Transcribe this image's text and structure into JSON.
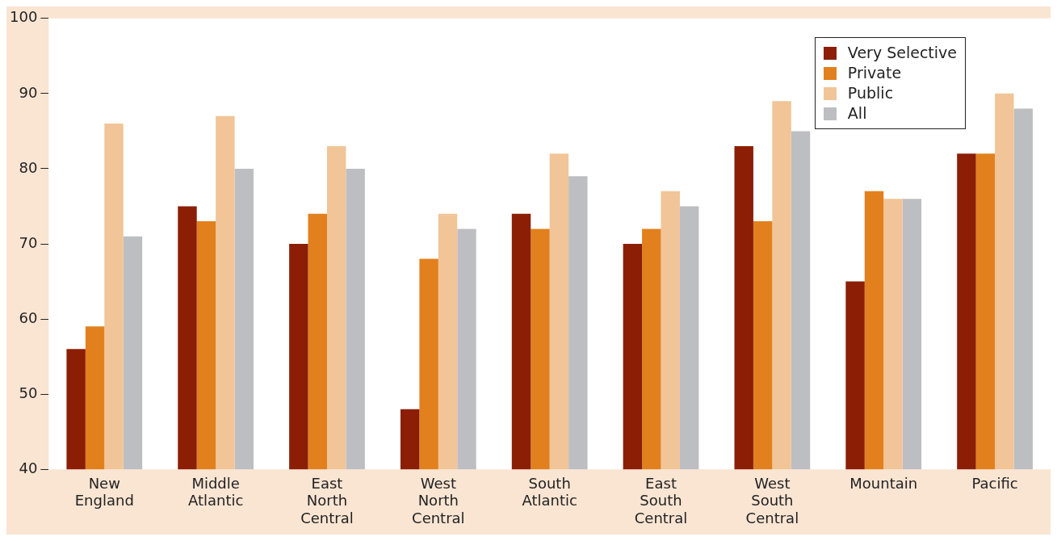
{
  "chart_data": {
    "type": "bar",
    "categories": [
      "New England",
      "Middle Atlantic",
      "East North Central",
      "West North Central",
      "South Atlantic",
      "East South Central",
      "West South Central",
      "Mountain",
      "Pacific"
    ],
    "series": [
      {
        "name": "Very Selective",
        "color": "#8b1e05",
        "values": [
          56,
          75,
          70,
          48,
          74,
          70,
          83,
          65,
          82
        ]
      },
      {
        "name": "Private",
        "color": "#e2801e",
        "values": [
          59,
          73,
          74,
          68,
          72,
          72,
          73,
          77,
          82
        ]
      },
      {
        "name": "Public",
        "color": "#f1c597",
        "values": [
          86,
          87,
          83,
          74,
          82,
          77,
          89,
          76,
          90
        ]
      },
      {
        "name": "All",
        "color": "#bdbec2",
        "values": [
          71,
          80,
          80,
          72,
          79,
          75,
          85,
          76,
          88
        ]
      }
    ],
    "ylim": [
      40,
      100
    ],
    "yticks": [
      40,
      50,
      60,
      70,
      80,
      90,
      100
    ],
    "grid": false,
    "legend": "top right"
  }
}
